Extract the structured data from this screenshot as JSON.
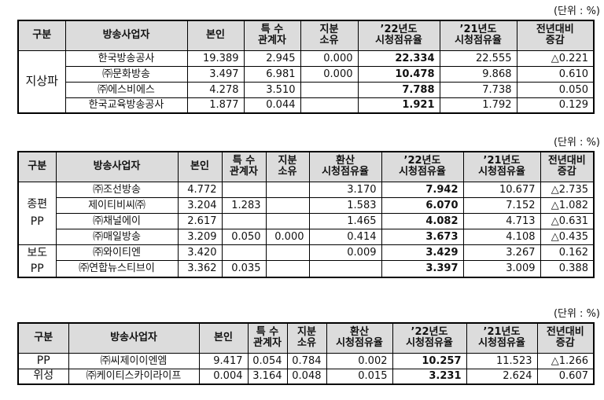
{
  "tables": [
    {
      "unit": "(단위 : %)",
      "headers": [
        "구분",
        "방송사업자",
        "본인",
        "특  수\n관계자",
        "지분\n소유",
        "’22년도\n시청점유율",
        "’21년도\n시청점유율",
        "전년대비\n증감"
      ],
      "group": "지상파",
      "rows": [
        [
          "한국방송공사",
          "19.389",
          "2.945",
          "0.000",
          "22.334",
          "22.555",
          "△0.221"
        ],
        [
          "㈜문화방송",
          "3.497",
          "6.981",
          "0.000",
          "10.478",
          "9.868",
          "0.610"
        ],
        [
          "㈜에스비에스",
          "4.278",
          "3.510",
          "",
          "7.788",
          "7.738",
          "0.050"
        ],
        [
          "한국교육방송공사",
          "1.877",
          "0.044",
          "",
          "1.921",
          "1.792",
          "0.129"
        ]
      ]
    },
    {
      "unit": "(단위 : %)",
      "headers": [
        "구분",
        "방송사업자",
        "본인",
        "특  수\n관계자",
        "지분\n소유",
        "환산\n시청점유율",
        "’22년도\n시청점유율",
        "’21년도\n시청점유율",
        "전년대비\n증감"
      ],
      "groups": [
        "종편\nPP",
        "보도\nPP"
      ],
      "rows": [
        [
          "㈜조선방송",
          "4.772",
          "",
          "",
          "3.170",
          "7.942",
          "10.677",
          "△2.735"
        ],
        [
          "제이티비씨㈜",
          "3.204",
          "1.283",
          "",
          "1.583",
          "6.070",
          "7.152",
          "△1.082"
        ],
        [
          "㈜채널에이",
          "2.617",
          "",
          "",
          "1.465",
          "4.082",
          "4.713",
          "△0.631"
        ],
        [
          "㈜매일방송",
          "3.209",
          "0.050",
          "0.000",
          "0.414",
          "3.673",
          "4.108",
          "△0.435"
        ],
        [
          "㈜와이티엔",
          "3.420",
          "",
          "",
          "0.009",
          "3.429",
          "3.267",
          "0.162"
        ],
        [
          "㈜연합뉴스티브이",
          "3.362",
          "0.035",
          "",
          "",
          "3.397",
          "3.009",
          "0.388"
        ]
      ]
    },
    {
      "unit": "(단위 : %)",
      "headers": [
        "구분",
        "방송사업자",
        "본인",
        "특  수\n관계자",
        "지분\n소유",
        "환산\n시청점유율",
        "’22년도\n시청점유율",
        "’21년도\n시청점유율",
        "전년대비\n증감"
      ],
      "rows": [
        [
          "PP",
          "㈜씨제이이엔엠",
          "9.417",
          "0.054",
          "0.784",
          "0.002",
          "10.257",
          "11.523",
          "△1.266"
        ],
        [
          "위성",
          "㈜케이티스카이라이프",
          "0.004",
          "3.164",
          "0.048",
          "0.015",
          "3.231",
          "2.624",
          "0.607"
        ]
      ]
    }
  ]
}
